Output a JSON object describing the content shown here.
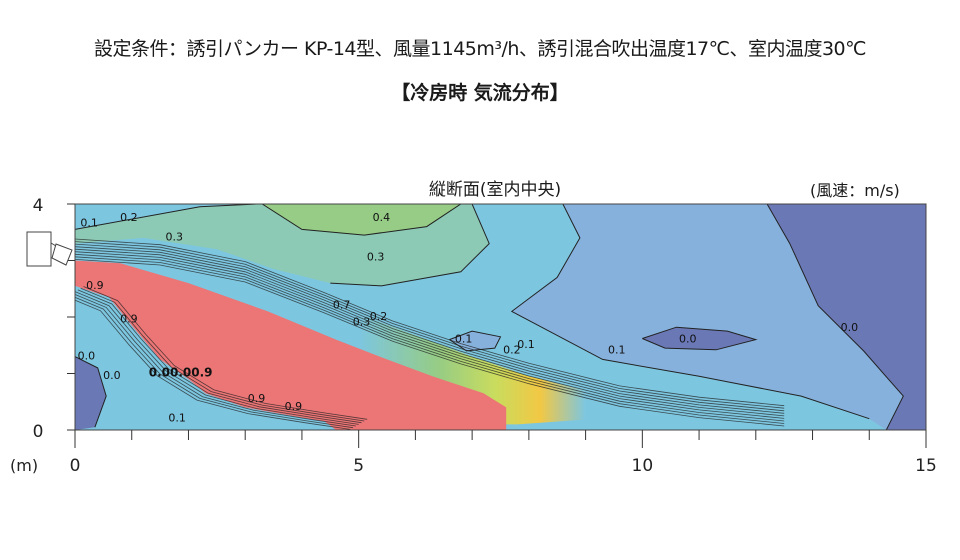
{
  "header": {
    "conditions": "設定条件：誘引パンカー KP-14型、風量1145m³/h、誘引混合吹出温度17℃、室内温度30℃",
    "section": "【冷房時 気流分布】"
  },
  "colors": {
    "v0": "#6a78b6",
    "v1": "#86b1dc",
    "v2": "#7dc6e0",
    "v3": "#8ccab5",
    "v4": "#96cc85",
    "mid": "#c9dc5e",
    "high": "#f2c844",
    "v9": "#ec7576"
  },
  "chart_data": {
    "type": "contour",
    "title": "縦断面(室内中央)",
    "unit_label": "(風速：m/s)",
    "x_unit_label": "(m)",
    "xlim": [
      0,
      15
    ],
    "ylim": [
      0,
      4
    ],
    "x_ticks": [
      0,
      5,
      10,
      15
    ],
    "y_ticks": [
      0,
      4
    ],
    "contour_labels": [
      {
        "text": "0.1",
        "x": 0.25,
        "y": 3.6
      },
      {
        "text": "0.2",
        "x": 0.95,
        "y": 3.7
      },
      {
        "text": "0.3",
        "x": 1.75,
        "y": 3.35
      },
      {
        "text": "0.4",
        "x": 5.4,
        "y": 3.7
      },
      {
        "text": "0.3",
        "x": 5.3,
        "y": 3.0
      },
      {
        "text": "0.9",
        "x": 0.35,
        "y": 2.5
      },
      {
        "text": "0.9",
        "x": 0.95,
        "y": 1.9
      },
      {
        "text": "0.7",
        "x": 4.7,
        "y": 2.15
      },
      {
        "text": "0.2",
        "x": 5.35,
        "y": 1.95
      },
      {
        "text": "0.3",
        "x": 5.05,
        "y": 1.85
      },
      {
        "text": "0.1",
        "x": 6.85,
        "y": 1.55
      },
      {
        "text": "0.1",
        "x": 7.95,
        "y": 1.45
      },
      {
        "text": "0.2",
        "x": 7.7,
        "y": 1.35
      },
      {
        "text": "0.1",
        "x": 9.55,
        "y": 1.35
      },
      {
        "text": "0.0",
        "x": 10.8,
        "y": 1.55
      },
      {
        "text": "0.0",
        "x": 13.65,
        "y": 1.75
      },
      {
        "text": "0.0",
        "x": 0.2,
        "y": 1.25
      },
      {
        "text": "0.0",
        "x": 0.65,
        "y": 0.9
      },
      {
        "text": "0.9",
        "x": 3.2,
        "y": 0.5
      },
      {
        "text": "0.9",
        "x": 3.85,
        "y": 0.35
      },
      {
        "text": "0.1",
        "x": 1.8,
        "y": 0.15
      }
    ],
    "outlet_label_cluster": "0.00.00.9"
  }
}
